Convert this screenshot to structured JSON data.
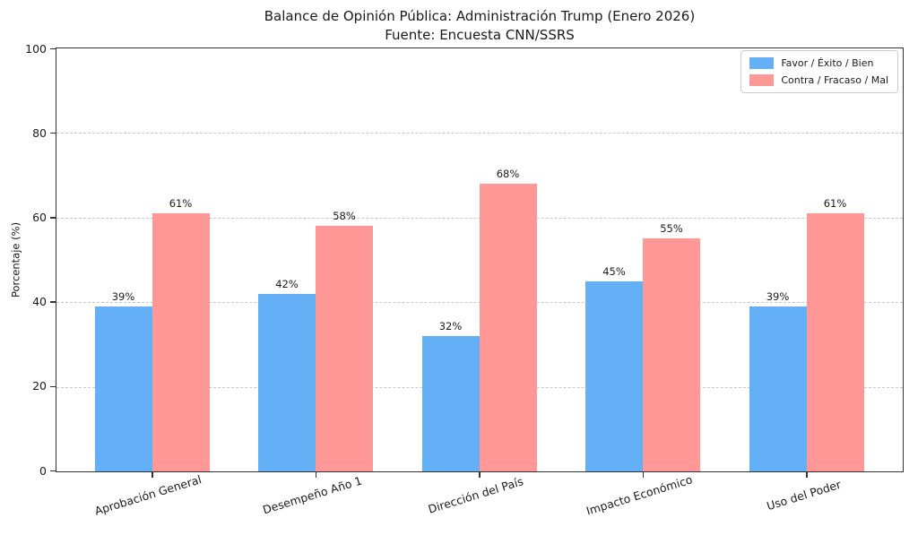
{
  "figure": {
    "title_line1": "Balance de Opinión Pública: Administración Trump (Enero 2026)",
    "title_line2": "Fuente: Encuesta CNN/SSRS"
  },
  "chart_data": {
    "type": "bar",
    "title": "Balance de Opinión Pública: Administración Trump (Enero 2026)",
    "subtitle": "Fuente: Encuesta CNN/SSRS",
    "categories": [
      "Aprobación General",
      "Desempeño Año 1",
      "Dirección del País",
      "Impacto Económico",
      "Uso del Poder"
    ],
    "series": [
      {
        "name": "Favor / Éxito / Bien",
        "color": "#64B0F7",
        "values": [
          39,
          42,
          32,
          45,
          39
        ]
      },
      {
        "name": "Contra / Fracaso / Mal",
        "color": "#FF9896",
        "values": [
          61,
          58,
          68,
          55,
          61
        ]
      }
    ],
    "bar_labels": [
      [
        "39%",
        "42%",
        "32%",
        "45%",
        "39%"
      ],
      [
        "61%",
        "58%",
        "68%",
        "55%",
        "61%"
      ]
    ],
    "xlabel": "",
    "ylabel": "Porcentaje (%)",
    "ylim": [
      0,
      100
    ],
    "yticks": [
      0,
      20,
      40,
      60,
      80,
      100
    ],
    "bar_label_suffix": "%",
    "grid": "horizontal-dashed",
    "legend_position": "upper-right"
  }
}
